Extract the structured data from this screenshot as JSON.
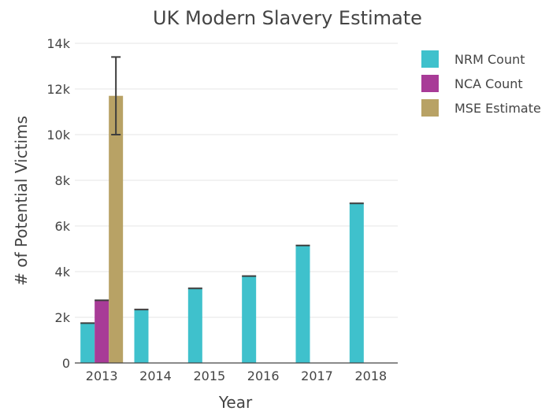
{
  "chart_data": {
    "type": "bar",
    "title": "UK Modern Slavery Estimate",
    "xlabel": "Year",
    "ylabel": "# of Potential Victims",
    "categories": [
      "2013",
      "2014",
      "2015",
      "2016",
      "2017",
      "2018"
    ],
    "ylim": [
      0,
      14000
    ],
    "yticks": [
      0,
      2000,
      4000,
      6000,
      8000,
      10000,
      12000,
      14000
    ],
    "ytick_labels": [
      "0",
      "2k",
      "4k",
      "6k",
      "8k",
      "10k",
      "12k",
      "14k"
    ],
    "grid": true,
    "legend_position": "top-right",
    "series": [
      {
        "name": "NRM Count",
        "color": "#3fc1cc",
        "values": [
          1746,
          2340,
          3266,
          3805,
          5145,
          6993
        ],
        "error_low": [
          null,
          null,
          null,
          null,
          null,
          null
        ],
        "error_high": [
          null,
          null,
          null,
          null,
          null,
          null
        ]
      },
      {
        "name": "NCA Count",
        "color": "#a83b97",
        "values": [
          2744,
          null,
          null,
          null,
          null,
          null
        ],
        "error_low": [
          null,
          null,
          null,
          null,
          null,
          null
        ],
        "error_high": [
          null,
          null,
          null,
          null,
          null,
          null
        ]
      },
      {
        "name": "MSE Estimate",
        "color": "#b8a265",
        "values": [
          11700,
          null,
          null,
          null,
          null,
          null
        ],
        "error_low": [
          10000,
          null,
          null,
          null,
          null,
          null
        ],
        "error_high": [
          13400,
          null,
          null,
          null,
          null,
          null
        ]
      }
    ]
  }
}
